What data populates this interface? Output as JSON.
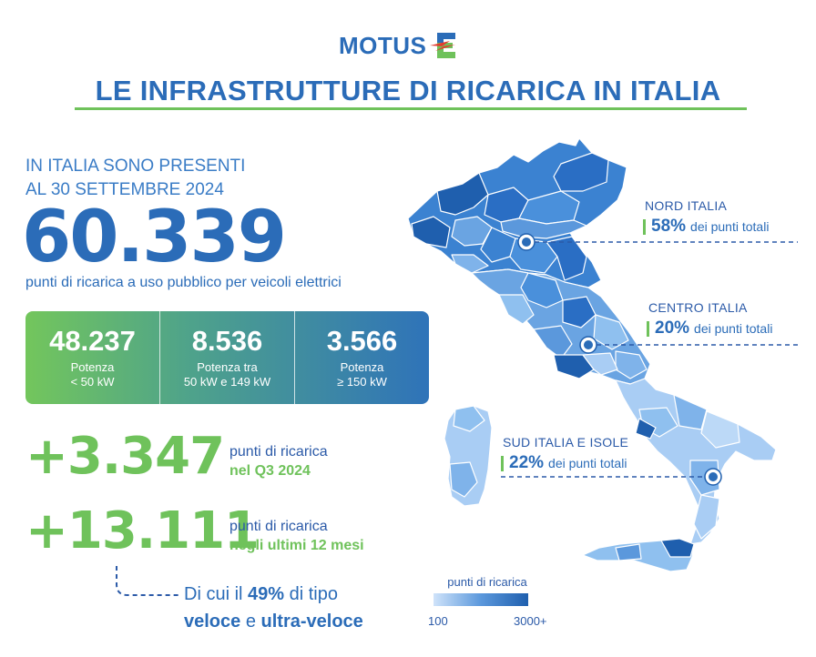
{
  "logo": {
    "text": "MOTUS",
    "mark": "E"
  },
  "title": "LE INFRASTRUTTURE DI RICARICA IN ITALIA",
  "intro": {
    "line1": "IN ITALIA SONO PRESENTI",
    "line2": "AL 30 SETTEMBRE 2024"
  },
  "total": {
    "value": "60.339",
    "caption": "punti di ricarica a uso pubblico per veicoli elettrici"
  },
  "power_breakdown": [
    {
      "value": "48.237",
      "label_line1": "Potenza",
      "label_line2": "< 50 kW"
    },
    {
      "value": "8.536",
      "label_line1": "Potenza tra",
      "label_line2": "50 kW e 149 kW"
    },
    {
      "value": "3.566",
      "label_line1": "Potenza",
      "label_line2": "≥ 150 kW"
    }
  ],
  "growth": [
    {
      "value": "+3.347",
      "text": "punti di ricarica",
      "accent": "nel Q3 2024"
    },
    {
      "value": "+13.111",
      "text": "punti di ricarica",
      "accent": "negli ultimi 12 mesi"
    }
  ],
  "note": {
    "prefix": "Di cui il",
    "pct": "49%",
    "middle": "di tipo",
    "strong1": "veloce",
    "conj": "e",
    "strong2": "ultra-veloce"
  },
  "regions": {
    "nord": {
      "title": "NORD ITALIA",
      "pct": "58%",
      "desc": "dei punti totali"
    },
    "centro": {
      "title": "CENTRO ITALIA",
      "pct": "20%",
      "desc": "dei punti totali"
    },
    "sud": {
      "title": "SUD ITALIA E ISOLE",
      "pct": "22%",
      "desc": "dei punti totali"
    }
  },
  "legend": {
    "title": "punti di ricarica",
    "min": "100",
    "max": "3000+"
  },
  "colors": {
    "brand_blue": "#2b6cb8",
    "brand_green": "#6fc25b",
    "map_light": "#a9cdf4",
    "map_dark": "#1f5fae",
    "logo_red": "#e23b2e"
  },
  "icons": {
    "logo_mark": "motus-e-logo-icon",
    "map": "italy-map-icon"
  }
}
